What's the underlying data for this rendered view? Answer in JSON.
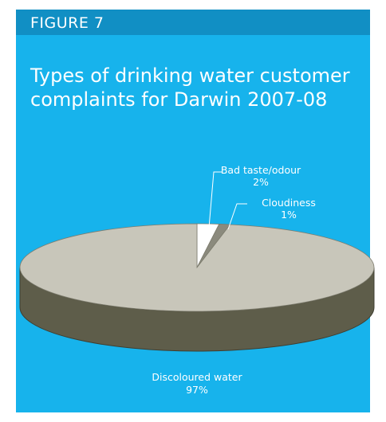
{
  "figure_label": "FIGURE 7",
  "chart_data": {
    "type": "pie",
    "title_lines": [
      "Types of drinking water customer",
      "complaints for Darwin 2007-08"
    ],
    "slices": [
      {
        "name": "Bad taste/odour",
        "value": 2,
        "display": "2%",
        "color": "#ffffff"
      },
      {
        "name": "Cloudiness",
        "value": 1,
        "display": "1%",
        "color": "#8b8a7d"
      },
      {
        "name": "Discoloured water",
        "value": 97,
        "display": "97%",
        "color": "#c8c6ba"
      }
    ],
    "side_color": "#5e5d4a",
    "background_color": "#17b3ec"
  }
}
